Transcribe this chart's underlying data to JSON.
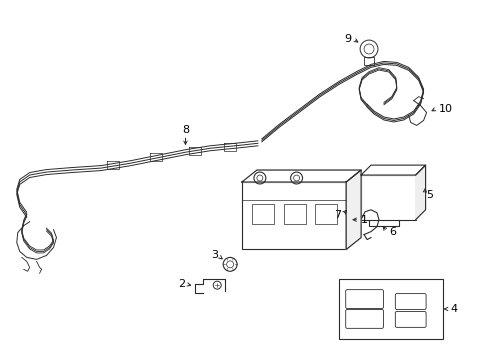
{
  "background_color": "#ffffff",
  "line_color": "#2a2a2a",
  "text_color": "#000000",
  "fig_width": 4.9,
  "fig_height": 3.6,
  "dpi": 100,
  "lw_cable": 1.0,
  "lw_part": 0.8,
  "label_fontsize": 8
}
